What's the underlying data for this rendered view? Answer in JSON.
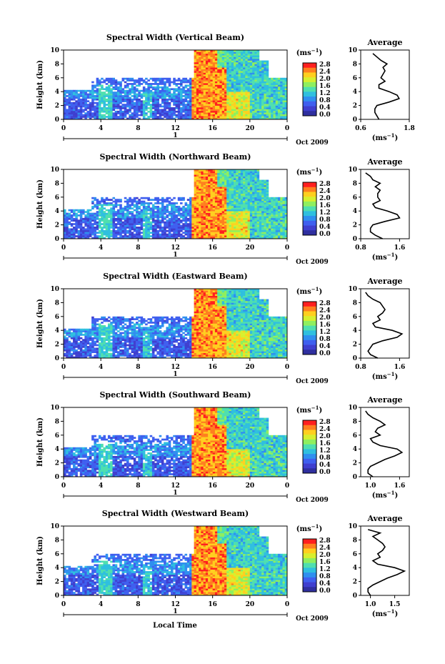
{
  "figure": {
    "xlabel": "Local Time",
    "date_label": "Oct 2009",
    "day_label": "1",
    "colorbar": {
      "unit_base": "(ms",
      "unit_exp": "−1",
      "unit_close": ")",
      "ticks": [
        "2.8",
        "2.4",
        "2.0",
        "1.6",
        "1.2",
        "0.8",
        "0.4",
        "0.0"
      ],
      "colors": [
        "#ff1f1f",
        "#ff7f1f",
        "#ffcf1f",
        "#d7ef2f",
        "#8fef5f",
        "#4fdfaf",
        "#2fbfdf",
        "#2f8fef",
        "#3f5fef",
        "#3f3fcf",
        "#2f2f9f"
      ]
    }
  },
  "chart_data": [
    {
      "type": "heatmap",
      "title": "Spectral Width (Vertical Beam)",
      "ylabel": "Height (km)",
      "xlim": [
        0,
        24
      ],
      "ylim": [
        0,
        10
      ],
      "xticks": [
        "0",
        "4",
        "8",
        "12",
        "16",
        "20",
        "0"
      ],
      "yticks": [
        "0",
        "2",
        "4",
        "6",
        "8",
        "10"
      ],
      "value_range": [
        0.0,
        2.8
      ]
    },
    {
      "type": "line",
      "title": "Average",
      "xlabel_base": "(ms",
      "xlabel_exp": "−1",
      "xlabel_close": ")",
      "xlim": [
        0.6,
        1.8
      ],
      "ylim": [
        0,
        10
      ],
      "xticks": [
        {
          "v": 0.6,
          "l": "0.6"
        },
        {
          "v": 1.8,
          "l": "1.8"
        }
      ],
      "yticks": [
        "0",
        "2",
        "4",
        "6",
        "8",
        "10"
      ],
      "y": [
        0,
        0.5,
        1,
        1.5,
        2,
        2.5,
        3,
        3.5,
        4,
        4.5,
        5,
        5.5,
        6,
        6.5,
        7,
        7.5,
        8,
        8.5,
        9,
        9.5
      ],
      "x": [
        1.05,
        1.0,
        0.95,
        0.95,
        1.0,
        1.3,
        1.55,
        1.5,
        1.3,
        1.05,
        1.05,
        1.2,
        1.1,
        1.15,
        1.2,
        1.15,
        1.25,
        1.1,
        1.0,
        0.9
      ]
    },
    {
      "type": "heatmap",
      "title": "Spectral Width (Northward Beam)",
      "ylabel": "Height (km)",
      "xlim": [
        0,
        24
      ],
      "ylim": [
        0,
        10
      ],
      "xticks": [
        "0",
        "4",
        "8",
        "12",
        "16",
        "20",
        "0"
      ],
      "yticks": [
        "0",
        "2",
        "4",
        "6",
        "8",
        "10"
      ],
      "value_range": [
        0.0,
        2.8
      ]
    },
    {
      "type": "line",
      "title": "Average",
      "xlabel_base": "(ms",
      "xlabel_exp": "−1",
      "xlabel_close": ")",
      "xlim": [
        0.8,
        1.8
      ],
      "ylim": [
        0,
        10
      ],
      "xticks": [
        {
          "v": 0.8,
          "l": "0.8"
        },
        {
          "v": 1.6,
          "l": "1.6"
        }
      ],
      "yticks": [
        "0",
        "2",
        "4",
        "6",
        "8",
        "10"
      ],
      "y": [
        0,
        0.5,
        1,
        1.5,
        2,
        2.5,
        3,
        3.5,
        4,
        4.5,
        5,
        5.5,
        6,
        6.5,
        7,
        7.5,
        8,
        8.5,
        9,
        9.5
      ],
      "x": [
        1.25,
        1.1,
        1.0,
        1.0,
        1.05,
        1.3,
        1.6,
        1.55,
        1.35,
        1.1,
        1.05,
        1.2,
        1.15,
        1.15,
        1.2,
        1.1,
        1.2,
        1.05,
        1.0,
        0.9
      ]
    },
    {
      "type": "heatmap",
      "title": "Spectral Width (Eastward Beam)",
      "ylabel": "Height (km)",
      "xlim": [
        0,
        24
      ],
      "ylim": [
        0,
        10
      ],
      "xticks": [
        "0",
        "4",
        "8",
        "12",
        "16",
        "20",
        "0"
      ],
      "yticks": [
        "0",
        "2",
        "4",
        "6",
        "8",
        "10"
      ],
      "value_range": [
        0.0,
        2.8
      ]
    },
    {
      "type": "line",
      "title": "Average",
      "xlabel_base": "(ms",
      "xlabel_exp": "−1",
      "xlabel_close": ")",
      "xlim": [
        0.8,
        1.8
      ],
      "ylim": [
        0,
        10
      ],
      "xticks": [
        {
          "v": 0.8,
          "l": "0.8"
        },
        {
          "v": 1.6,
          "l": "1.6"
        }
      ],
      "yticks": [
        "0",
        "2",
        "4",
        "6",
        "8",
        "10"
      ],
      "y": [
        0,
        0.5,
        1,
        1.5,
        2,
        2.5,
        3,
        3.5,
        4,
        4.5,
        5,
        5.5,
        6,
        6.5,
        7,
        7.5,
        8,
        8.5,
        9,
        9.5
      ],
      "x": [
        1.15,
        1.0,
        0.95,
        1.0,
        1.05,
        1.25,
        1.55,
        1.65,
        1.45,
        1.1,
        1.05,
        1.2,
        1.15,
        1.25,
        1.3,
        1.25,
        1.2,
        1.05,
        0.95,
        0.9
      ]
    },
    {
      "type": "heatmap",
      "title": "Spectral Width (Southward Beam)",
      "ylabel": "Height (km)",
      "xlim": [
        0,
        24
      ],
      "ylim": [
        0,
        10
      ],
      "xticks": [
        "0",
        "4",
        "8",
        "12",
        "16",
        "20",
        "0"
      ],
      "yticks": [
        "0",
        "2",
        "4",
        "6",
        "8",
        "10"
      ],
      "value_range": [
        0.0,
        2.8
      ]
    },
    {
      "type": "line",
      "title": "Average",
      "xlabel_base": "(ms",
      "xlabel_exp": "−1",
      "xlabel_close": ")",
      "xlim": [
        0.8,
        1.8
      ],
      "ylim": [
        0,
        10
      ],
      "xticks": [
        {
          "v": 1.0,
          "l": "1.0"
        },
        {
          "v": 1.6,
          "l": "1.6"
        }
      ],
      "yticks": [
        "0",
        "2",
        "4",
        "6",
        "8",
        "10"
      ],
      "y": [
        0,
        0.5,
        1,
        1.5,
        2,
        2.5,
        3,
        3.5,
        4,
        4.5,
        5,
        5.5,
        6,
        6.5,
        7,
        7.5,
        8,
        8.5,
        9,
        9.5
      ],
      "x": [
        1.05,
        0.95,
        0.95,
        1.0,
        1.15,
        1.3,
        1.5,
        1.65,
        1.55,
        1.2,
        1.05,
        1.0,
        1.2,
        1.1,
        1.15,
        1.3,
        1.2,
        1.05,
        0.95,
        0.9
      ]
    },
    {
      "type": "heatmap",
      "title": "Spectral Width (Westward Beam)",
      "ylabel": "Height (km)",
      "xlim": [
        0,
        24
      ],
      "ylim": [
        0,
        10
      ],
      "xticks": [
        "0",
        "4",
        "8",
        "12",
        "16",
        "20",
        "0"
      ],
      "yticks": [
        "0",
        "2",
        "4",
        "6",
        "8",
        "10"
      ],
      "value_range": [
        0.0,
        2.8
      ]
    },
    {
      "type": "line",
      "title": "Average",
      "xlabel_base": "(ms",
      "xlabel_exp": "−1",
      "xlabel_close": ")",
      "xlim": [
        0.8,
        1.8
      ],
      "ylim": [
        0,
        10
      ],
      "xticks": [
        {
          "v": 1.0,
          "l": "1.0"
        },
        {
          "v": 1.5,
          "l": "1.5"
        }
      ],
      "yticks": [
        "0",
        "2",
        "4",
        "6",
        "8",
        "10"
      ],
      "y": [
        0,
        0.5,
        1,
        1.5,
        2,
        2.5,
        3,
        3.5,
        4,
        4.5,
        5,
        5.5,
        6,
        6.5,
        7,
        7.5,
        8,
        8.5,
        9,
        9.5
      ],
      "x": [
        1.0,
        0.95,
        0.95,
        1.05,
        1.2,
        1.35,
        1.55,
        1.7,
        1.5,
        1.15,
        1.05,
        1.2,
        1.15,
        1.25,
        1.3,
        1.25,
        1.15,
        1.05,
        1.2,
        0.95
      ]
    }
  ]
}
